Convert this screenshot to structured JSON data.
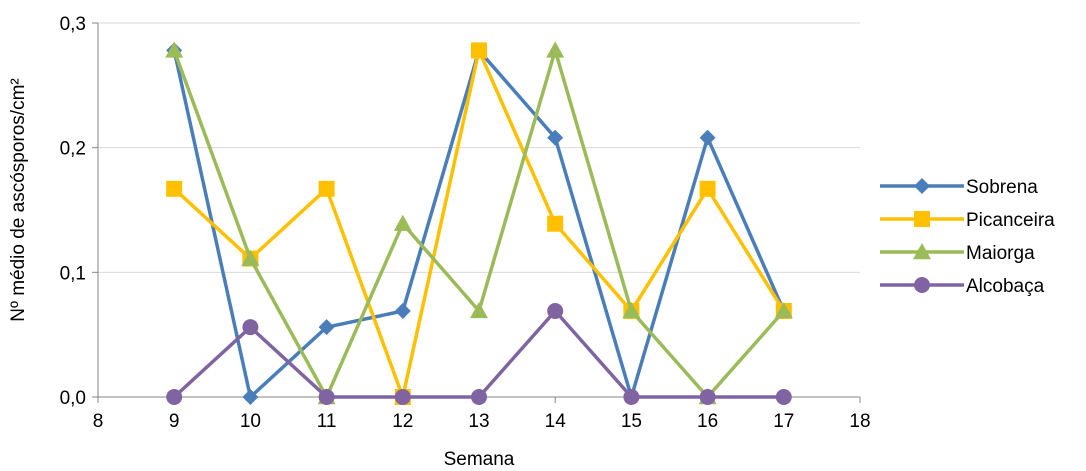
{
  "chart_data": {
    "type": "line",
    "title": "",
    "xlabel": "Semana",
    "ylabel": "Nº médio de ascósporos/cm²",
    "xlim": [
      8,
      18
    ],
    "ylim": [
      0,
      0.3
    ],
    "x_ticks": [
      8,
      9,
      10,
      11,
      12,
      13,
      14,
      15,
      16,
      17,
      18
    ],
    "y_ticks": [
      {
        "value": 0.0,
        "label": "0,0"
      },
      {
        "value": 0.1,
        "label": "0,1"
      },
      {
        "value": 0.2,
        "label": "0,2"
      },
      {
        "value": 0.3,
        "label": "0,3"
      }
    ],
    "grid": "horizontal",
    "legend_position": "right",
    "x": [
      9,
      10,
      11,
      12,
      13,
      14,
      15,
      16,
      17
    ],
    "series": [
      {
        "name": "Sobrena",
        "color": "#4A7EBB",
        "marker": "diamond",
        "values": [
          0.278,
          0.0,
          0.056,
          0.069,
          0.278,
          0.208,
          0.0,
          0.208,
          0.069
        ]
      },
      {
        "name": "Picanceira",
        "color": "#FFC000",
        "marker": "square",
        "values": [
          0.167,
          0.111,
          0.167,
          0.0,
          0.278,
          0.139,
          0.069,
          0.167,
          0.069
        ]
      },
      {
        "name": "Maiorga",
        "color": "#9BBB59",
        "marker": "triangle",
        "values": [
          0.278,
          0.111,
          0.0,
          0.139,
          0.069,
          0.278,
          0.069,
          0.0,
          0.069
        ]
      },
      {
        "name": "Alcobaça",
        "color": "#8064A2",
        "marker": "circle",
        "values": [
          0.0,
          0.056,
          0.0,
          0.0,
          0.0,
          0.069,
          0.0,
          0.0,
          0.0
        ]
      }
    ]
  }
}
